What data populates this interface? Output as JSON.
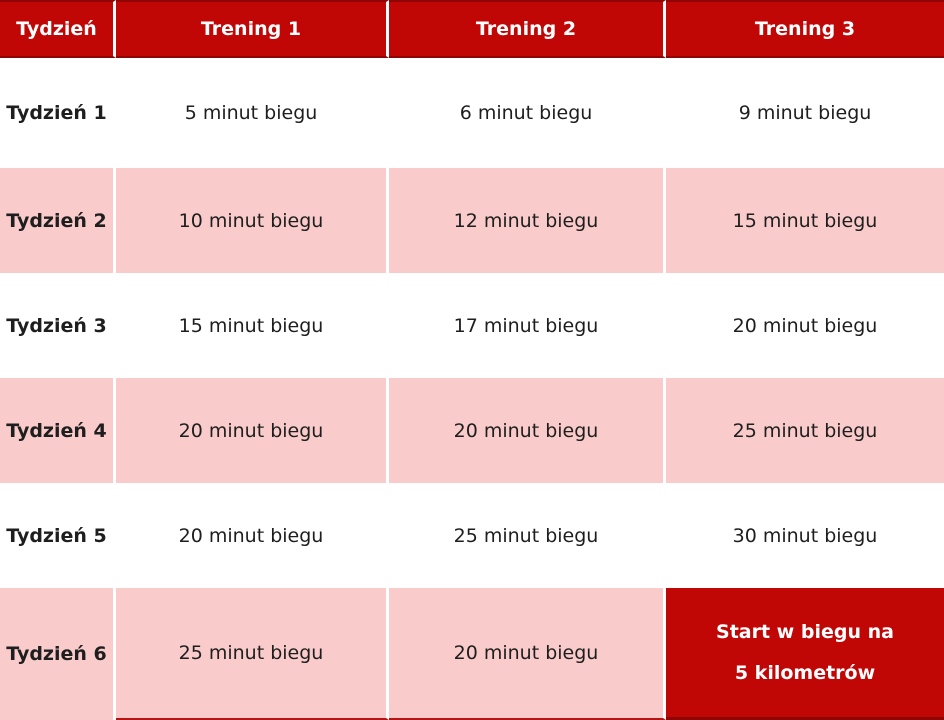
{
  "colors": {
    "header_bg": "#C10606",
    "header_border": "#8F0404",
    "pink": "#FACBCB",
    "bottom_line": "#B51414",
    "text_dark": "#1E1E1E",
    "text_light": "#FFFFFF"
  },
  "header": {
    "cells": [
      "Tydzień",
      "Trening 1",
      "Trening 2",
      "Trening 3"
    ]
  },
  "rows": [
    {
      "cells": [
        "Tydzień 1",
        "5 minut biegu",
        "6 minut biegu",
        "9 minut biegu"
      ]
    },
    {
      "cells": [
        "Tydzień 2",
        "10 minut biegu",
        "12 minut biegu",
        "15 minut biegu"
      ]
    },
    {
      "cells": [
        "Tydzień 3",
        "15 minut biegu",
        "17 minut biegu",
        "20 minut biegu"
      ]
    },
    {
      "cells": [
        "Tydzień 4",
        "20 minut biegu",
        "20 minut biegu",
        "25 minut biegu"
      ]
    },
    {
      "cells": [
        "Tydzień 5",
        "20 minut biegu",
        "25 minut biegu",
        "30 minut biegu"
      ]
    },
    {
      "cells": [
        "Tydzień 6",
        "25 minut biegu",
        "20 minut biegu"
      ]
    }
  ],
  "finale": {
    "line1": "Start w biegu na",
    "line2": "5 kilometrów"
  },
  "chart_data": {
    "type": "table",
    "columns": [
      "Tydzień",
      "Trening 1",
      "Trening 2",
      "Trening 3"
    ],
    "rows": [
      [
        "Tydzień 1",
        "5 minut biegu",
        "6 minut biegu",
        "9 minut biegu"
      ],
      [
        "Tydzień 2",
        "10 minut biegu",
        "12 minut biegu",
        "15 minut biegu"
      ],
      [
        "Tydzień 3",
        "15 minut biegu",
        "17 minut biegu",
        "20 minut biegu"
      ],
      [
        "Tydzień 4",
        "20 minut biegu",
        "20 minut biegu",
        "25 minut biegu"
      ],
      [
        "Tydzień 5",
        "20 minut biegu",
        "25 minut biegu",
        "30 minut biegu"
      ],
      [
        "Tydzień 6",
        "25 minut biegu",
        "20 minut biegu",
        "Start w biegu na 5 kilometrów"
      ]
    ]
  }
}
